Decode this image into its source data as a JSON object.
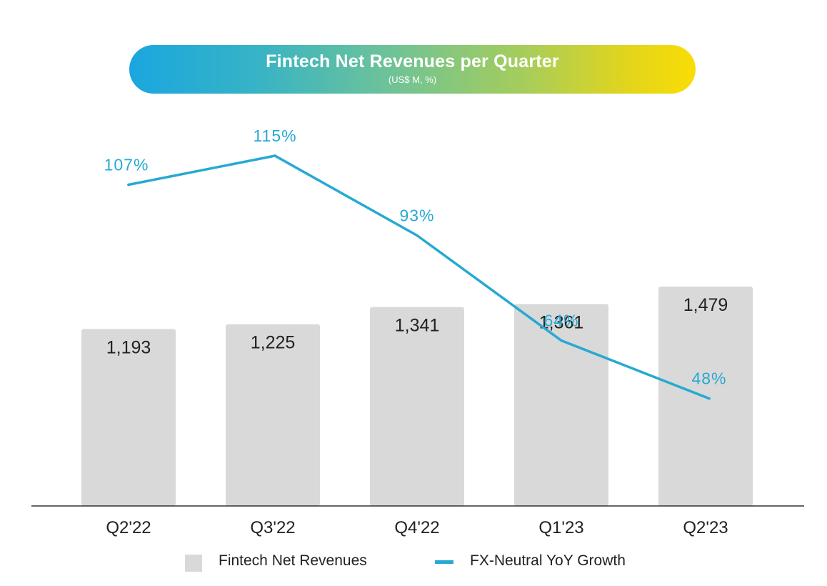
{
  "header": {
    "title": "Fintech Net Revenues per Quarter",
    "subtitle": "(US$ M, %)"
  },
  "legend": {
    "bars_label": "Fintech Net Revenues",
    "line_label": "FX-Neutral YoY Growth"
  },
  "colors": {
    "bar": "#d9d9d9",
    "line": "#27a9d3",
    "growth_text": "#27a9d3",
    "axis": "#333333",
    "text": "#222222"
  },
  "chart_data": {
    "type": "bar",
    "title": "Fintech Net Revenues per Quarter",
    "subtitle": "(US$ M, %)",
    "categories": [
      "Q2'22",
      "Q3'22",
      "Q4'22",
      "Q1'23",
      "Q2'23"
    ],
    "series": [
      {
        "name": "Fintech Net Revenues",
        "type": "bar",
        "values": [
          1193,
          1225,
          1341,
          1361,
          1479
        ],
        "labels": [
          "1,193",
          "1,225",
          "1,341",
          "1,361",
          "1,479"
        ]
      },
      {
        "name": "FX-Neutral YoY Growth",
        "type": "line",
        "values": [
          107,
          115,
          93,
          64,
          48
        ],
        "labels": [
          "107%",
          "115%",
          "93%",
          "64%",
          "48%"
        ]
      }
    ],
    "xlabel": "",
    "ylabel": "",
    "legend_position": "bottom",
    "grid": false
  }
}
